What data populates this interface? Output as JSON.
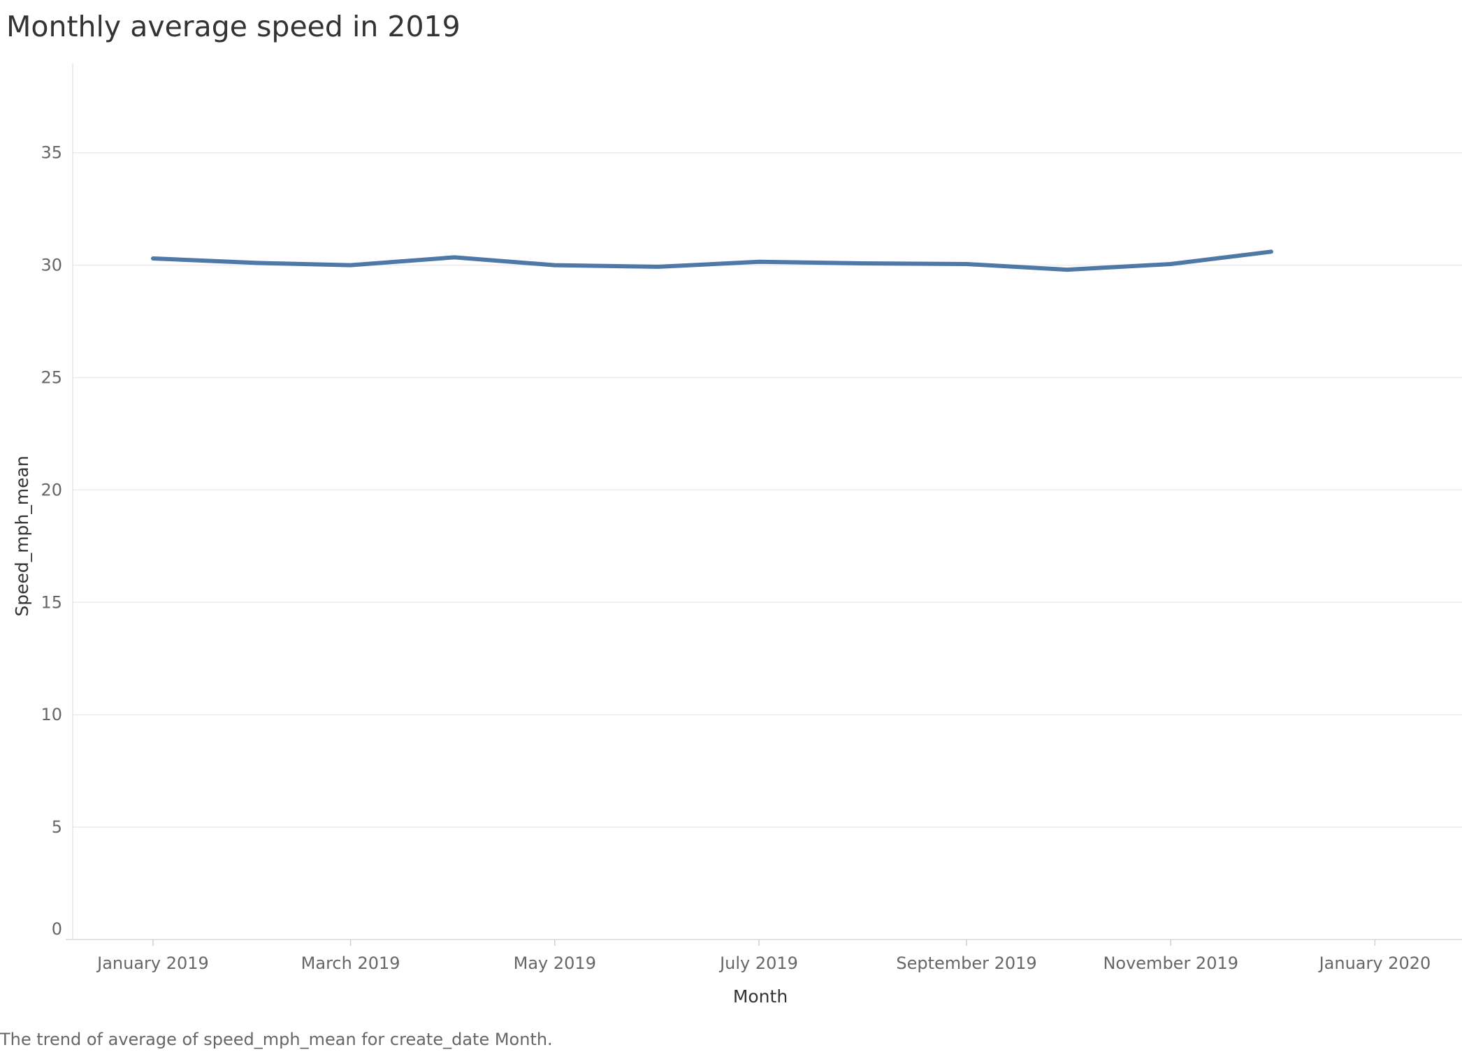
{
  "chart_data": {
    "type": "line",
    "title": "Monthly average speed in 2019",
    "caption": "The trend of average of speed_mph_mean for create_date Month.",
    "xlabel": "Month",
    "ylabel": "Speed_mph_mean",
    "x_tick_labels": [
      {
        "date": "2019-01-01",
        "label": "January 2019"
      },
      {
        "date": "2019-03-01",
        "label": "March 2019"
      },
      {
        "date": "2019-05-01",
        "label": "May 2019"
      },
      {
        "date": "2019-07-01",
        "label": "July 2019"
      },
      {
        "date": "2019-09-01",
        "label": "September 2019"
      },
      {
        "date": "2019-11-01",
        "label": "November 2019"
      },
      {
        "date": "2020-01-01",
        "label": "January 2020"
      }
    ],
    "y_ticks": [
      0,
      5,
      10,
      15,
      20,
      25,
      30,
      35
    ],
    "ylim": [
      0,
      39
    ],
    "xlim": [
      "2018-12-08",
      "2020-01-27"
    ],
    "grid": true,
    "line_color": "#4e79a7",
    "series": [
      {
        "x": [
          "2019-01-01",
          "2019-02-01",
          "2019-03-01",
          "2019-04-01",
          "2019-05-01",
          "2019-06-01",
          "2019-07-01",
          "2019-08-01",
          "2019-09-01",
          "2019-10-01",
          "2019-11-01",
          "2019-12-01"
        ],
        "values": [
          30.3,
          30.1,
          30.0,
          30.35,
          30.0,
          29.93,
          30.15,
          30.08,
          30.05,
          29.8,
          30.05,
          30.6
        ]
      }
    ]
  }
}
